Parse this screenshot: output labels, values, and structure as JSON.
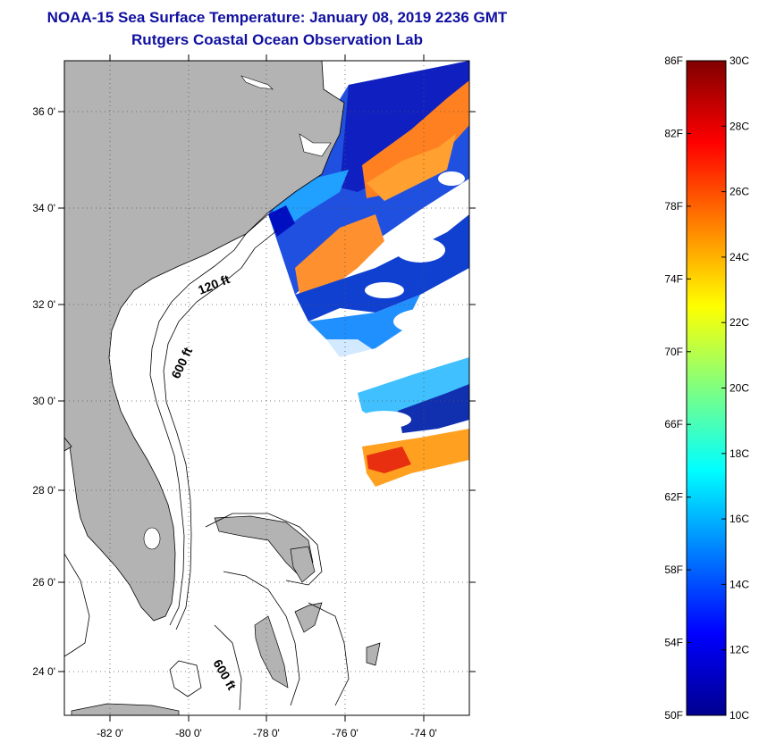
{
  "title_line1": "NOAA-15 Sea Surface Temperature:  January 08, 2019 2236 GMT",
  "title_line2": "Rutgers Coastal Ocean Observation Lab",
  "map": {
    "lon_ticks": [
      "-82 0'",
      "-80 0'",
      "-78 0'",
      "-76 0'",
      "-74 0'"
    ],
    "lat_ticks": [
      "36 0'",
      "34 0'",
      "32 0'",
      "30 0'",
      "28 0'",
      "26 0'",
      "24 0'"
    ],
    "contour_labels": [
      "120 ft",
      "600 ft",
      "600 ft"
    ],
    "colors": {
      "land": "#b3b3b3",
      "cloud": "#ffffff"
    }
  },
  "colorbar": {
    "fahrenheit": [
      "86F",
      "82F",
      "78F",
      "74F",
      "70F",
      "66F",
      "62F",
      "58F",
      "54F",
      "50F"
    ],
    "celsius": [
      "30C",
      "28C",
      "26C",
      "24C",
      "22C",
      "20C",
      "18C",
      "16C",
      "14C",
      "12C",
      "10C"
    ]
  }
}
